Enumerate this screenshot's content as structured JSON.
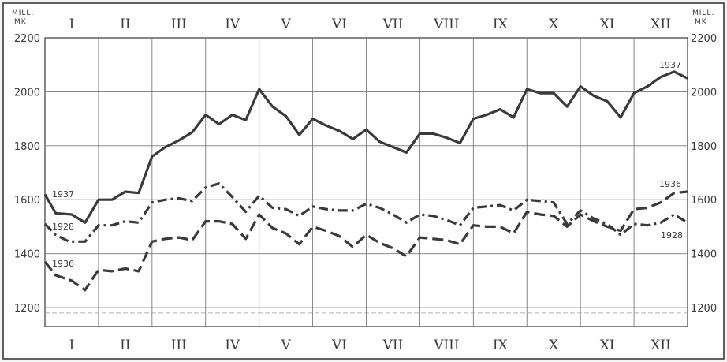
{
  "chart_data": {
    "type": "line",
    "unit_label_left": [
      "MILL.",
      "MK"
    ],
    "unit_label_right": [
      "MILL.",
      "MK"
    ],
    "months_top": [
      "I",
      "II",
      "III",
      "IV",
      "V",
      "VI",
      "VII",
      "VIII",
      "IX",
      "X",
      "XI",
      "XII"
    ],
    "months_bottom": [
      "I",
      "II",
      "III",
      "IV",
      "V",
      "VI",
      "VII",
      "VIII",
      "IX",
      "X",
      "XI",
      "XII"
    ],
    "y_ticks": [
      1200,
      1400,
      1600,
      1800,
      2000,
      2200
    ],
    "ylim": [
      1130,
      2200
    ],
    "x_range": [
      0,
      12
    ],
    "grid": true,
    "series": [
      {
        "name": "1937",
        "style": "solid",
        "color": "#3a3a3a",
        "label_start": "1937",
        "label_end": "1937",
        "x": [
          0,
          0.2,
          0.5,
          0.75,
          1.0,
          1.25,
          1.5,
          1.75,
          2.0,
          2.25,
          2.5,
          2.75,
          3.0,
          3.25,
          3.5,
          3.75,
          4.0,
          4.25,
          4.5,
          4.75,
          5.0,
          5.25,
          5.5,
          5.75,
          6.0,
          6.25,
          6.5,
          6.75,
          7.0,
          7.25,
          7.5,
          7.75,
          8.0,
          8.25,
          8.5,
          8.75,
          9.0,
          9.25,
          9.5,
          9.75,
          10.0,
          10.25,
          10.5,
          10.75,
          11.0,
          11.25,
          11.5,
          11.75,
          12.0
        ],
        "values": [
          1620,
          1550,
          1545,
          1515,
          1600,
          1600,
          1630,
          1625,
          1760,
          1795,
          1820,
          1850,
          1915,
          1880,
          1915,
          1895,
          2010,
          1945,
          1910,
          1840,
          1900,
          1875,
          1855,
          1825,
          1860,
          1815,
          1795,
          1775,
          1845,
          1845,
          1830,
          1810,
          1900,
          1915,
          1935,
          1905,
          2010,
          1995,
          1995,
          1945,
          2020,
          1985,
          1965,
          1905,
          1995,
          2020,
          2055,
          2075,
          2050
        ]
      },
      {
        "name": "1928",
        "style": "dash-dot",
        "color": "#3a3a3a",
        "label_start": "1928",
        "label_end": "1928",
        "x": [
          0,
          0.2,
          0.45,
          0.75,
          1.0,
          1.25,
          1.5,
          1.75,
          2.0,
          2.25,
          2.5,
          2.75,
          3.0,
          3.25,
          3.5,
          3.75,
          4.0,
          4.25,
          4.5,
          4.75,
          5.0,
          5.25,
          5.5,
          5.75,
          6.0,
          6.25,
          6.5,
          6.75,
          7.0,
          7.25,
          7.5,
          7.75,
          8.0,
          8.25,
          8.5,
          8.75,
          9.0,
          9.25,
          9.5,
          9.75,
          10.0,
          10.25,
          10.5,
          10.75,
          11.0,
          11.25,
          11.5,
          11.75,
          12.0
        ],
        "values": [
          1510,
          1470,
          1445,
          1445,
          1505,
          1505,
          1520,
          1515,
          1590,
          1600,
          1605,
          1595,
          1645,
          1660,
          1610,
          1555,
          1615,
          1570,
          1565,
          1540,
          1575,
          1565,
          1560,
          1560,
          1585,
          1570,
          1545,
          1515,
          1545,
          1540,
          1525,
          1505,
          1570,
          1575,
          1580,
          1560,
          1600,
          1595,
          1590,
          1510,
          1560,
          1530,
          1510,
          1470,
          1510,
          1505,
          1515,
          1545,
          1515
        ]
      },
      {
        "name": "1936",
        "style": "dashed",
        "color": "#3a3a3a",
        "label_start": "1936",
        "label_end": "1936",
        "x": [
          0,
          0.2,
          0.5,
          0.75,
          1.0,
          1.25,
          1.5,
          1.75,
          2.0,
          2.25,
          2.5,
          2.75,
          3.0,
          3.25,
          3.5,
          3.75,
          4.0,
          4.25,
          4.5,
          4.75,
          5.0,
          5.25,
          5.5,
          5.75,
          6.0,
          6.25,
          6.5,
          6.75,
          7.0,
          7.25,
          7.5,
          7.75,
          8.0,
          8.25,
          8.5,
          8.75,
          9.0,
          9.25,
          9.5,
          9.75,
          10.0,
          10.25,
          10.5,
          10.75,
          11.0,
          11.25,
          11.5,
          11.75,
          12.0
        ],
        "values": [
          1370,
          1320,
          1300,
          1265,
          1340,
          1335,
          1345,
          1335,
          1445,
          1455,
          1460,
          1450,
          1520,
          1520,
          1510,
          1455,
          1545,
          1495,
          1475,
          1435,
          1500,
          1485,
          1465,
          1425,
          1470,
          1440,
          1420,
          1390,
          1460,
          1455,
          1450,
          1435,
          1505,
          1500,
          1500,
          1475,
          1555,
          1545,
          1540,
          1500,
          1545,
          1520,
          1500,
          1485,
          1565,
          1570,
          1590,
          1625,
          1630
        ]
      }
    ]
  }
}
